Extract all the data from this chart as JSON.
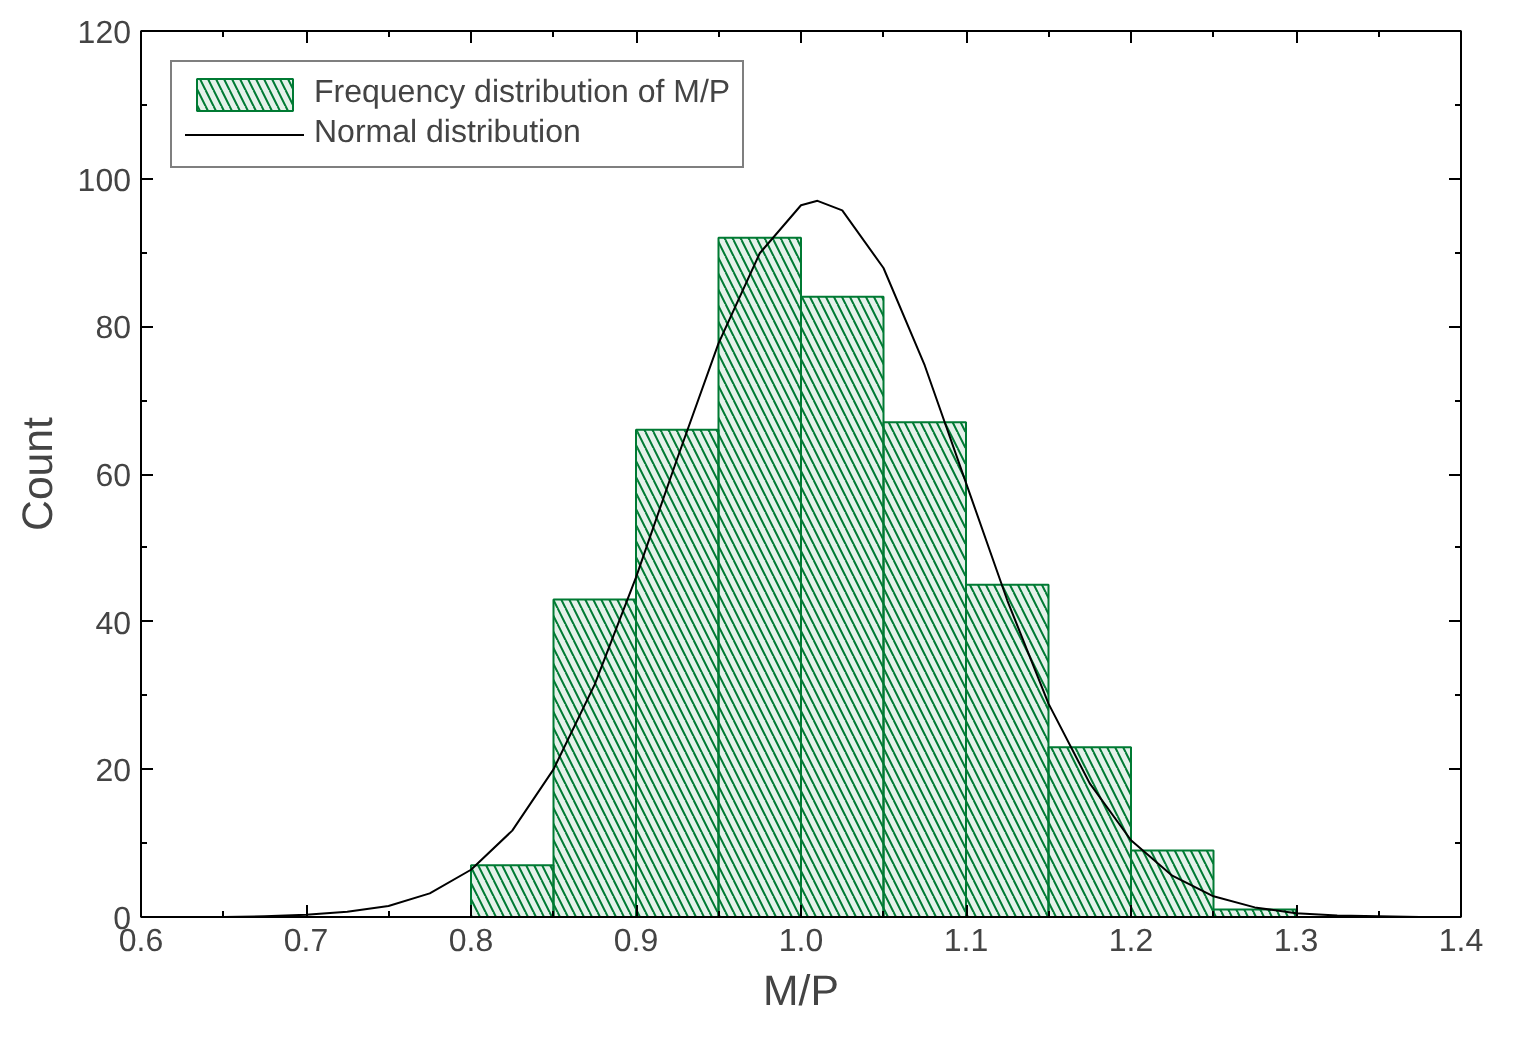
{
  "chart_data": {
    "type": "histogram",
    "xlabel": "M/P",
    "ylabel": "Count",
    "bins": [
      0.8,
      0.85,
      0.9,
      0.95,
      1.0,
      1.05,
      1.1,
      1.15,
      1.2,
      1.25,
      1.3
    ],
    "series": [
      {
        "name": "Frequency distribution of M/P",
        "color": "#007a33",
        "values": [
          7,
          43,
          66,
          92,
          84,
          67,
          45,
          23,
          9,
          1
        ]
      },
      {
        "name": "Normal distribution",
        "type": "line",
        "color": "#000000",
        "x": [
          0.6,
          0.625,
          0.65,
          0.675,
          0.7,
          0.725,
          0.75,
          0.775,
          0.8,
          0.825,
          0.85,
          0.875,
          0.9,
          0.925,
          0.95,
          0.975,
          1.0,
          1.01,
          1.025,
          1.05,
          1.075,
          1.1,
          1.125,
          1.15,
          1.175,
          1.2,
          1.225,
          1.25,
          1.275,
          1.3,
          1.325,
          1.35,
          1.375,
          1.4
        ],
        "values": [
          0,
          0,
          0,
          0.1,
          0.3,
          0.7,
          1.5,
          3.2,
          6.4,
          11.7,
          20.0,
          31.5,
          46.0,
          62.1,
          77.7,
          89.9,
          96.4,
          97,
          95.7,
          87.9,
          74.7,
          58.8,
          42.9,
          28.9,
          18.1,
          10.4,
          5.6,
          2.8,
          1.3,
          0.5,
          0.2,
          0.1,
          0,
          0
        ]
      }
    ],
    "xlim": [
      0.6,
      1.4
    ],
    "xticks": [
      0.6,
      0.7,
      0.8,
      0.9,
      {
        "value": 1.0,
        "label": "1.0"
      },
      1.1,
      1.2,
      1.3,
      1.4
    ],
    "ylim": [
      0,
      120
    ],
    "yticks": [
      0,
      20,
      40,
      60,
      80,
      100,
      120
    ],
    "grid": false,
    "legend": "top left",
    "marker": "none",
    "line_style": "solid"
  }
}
